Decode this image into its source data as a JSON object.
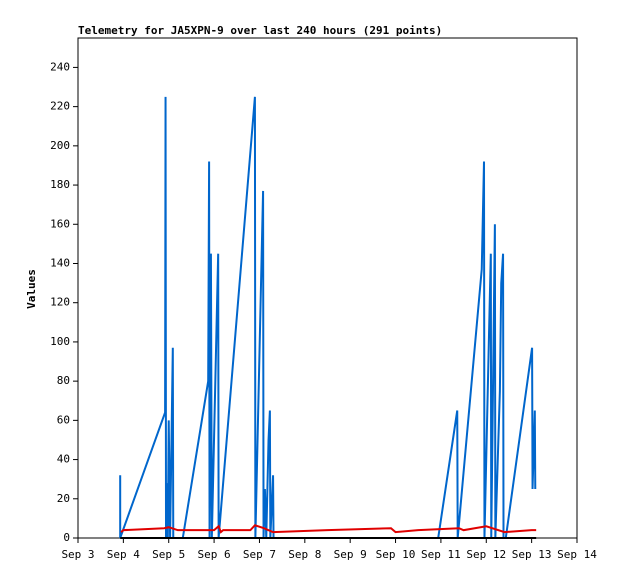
{
  "chart_data": {
    "type": "line",
    "title": "Telemetry for JA5XPN-9 over last 240 hours (291 points)",
    "y_label": "Values",
    "xlim": [
      3,
      14
    ],
    "xticks": [
      {
        "value": 3,
        "label": "Sep 3"
      },
      {
        "value": 4,
        "label": "Sep 4"
      },
      {
        "value": 5,
        "label": "Sep 5"
      },
      {
        "value": 6,
        "label": "Sep 6"
      },
      {
        "value": 7,
        "label": "Sep 7"
      },
      {
        "value": 8,
        "label": "Sep 8"
      },
      {
        "value": 9,
        "label": "Sep 9"
      },
      {
        "value": 10,
        "label": "Sep 10"
      },
      {
        "value": 11,
        "label": "Sep 11"
      },
      {
        "value": 12,
        "label": "Sep 12"
      },
      {
        "value": 13,
        "label": "Sep 13"
      },
      {
        "value": 14,
        "label": "Sep 14"
      }
    ],
    "ylim": [
      0,
      255
    ],
    "yticks": [
      0,
      20,
      40,
      60,
      80,
      100,
      120,
      140,
      160,
      180,
      200,
      220,
      240
    ],
    "grid": false,
    "series": [
      {
        "color": "#0066cc",
        "x": [
          3.93,
          3.93,
          4.92,
          4.93,
          4.94,
          4.96,
          4.98,
          5.0,
          5.03,
          5.09,
          5.1,
          5.31,
          5.87,
          5.89,
          5.9,
          5.93,
          5.95,
          6.09,
          6.1,
          6.9,
          6.91,
          7.08,
          7.09,
          7.12,
          7.15,
          7.2,
          7.23,
          7.24,
          7.3,
          7.31,
          10.94,
          11.36,
          11.37,
          11.9,
          11.95,
          11.96,
          12.1,
          12.11,
          12.19,
          12.2,
          12.3,
          12.33,
          12.37,
          12.38,
          12.43,
          13.01,
          13.02,
          13.07,
          13.08
        ],
        "values": [
          32,
          0,
          64,
          225,
          0,
          28,
          0,
          60,
          0,
          97,
          0,
          0,
          80,
          192,
          0,
          145,
          0,
          145,
          0,
          225,
          0,
          177,
          0,
          25,
          0,
          50,
          65,
          0,
          32,
          0,
          0,
          65,
          0,
          137,
          192,
          0,
          145,
          0,
          160,
          0,
          75,
          130,
          145,
          0,
          0,
          97,
          25,
          65,
          25
        ]
      },
      {
        "color": "#e00000",
        "x": [
          3.95,
          4.0,
          4.9,
          5.0,
          5.2,
          6.0,
          6.1,
          6.15,
          6.2,
          6.8,
          6.9,
          7.1,
          7.3,
          8.5,
          9.9,
          10.0,
          10.5,
          11.4,
          11.5,
          12.0,
          12.4,
          13.0,
          13.1
        ],
        "values": [
          3,
          4,
          5,
          5.5,
          4,
          4,
          6,
          3,
          4,
          4,
          6.5,
          5,
          3,
          4,
          5,
          3,
          4,
          5,
          4,
          6,
          3,
          4,
          4
        ]
      },
      {
        "color": "#000000",
        "x": [
          3.93,
          13.1
        ],
        "values": [
          0,
          0
        ]
      }
    ]
  }
}
